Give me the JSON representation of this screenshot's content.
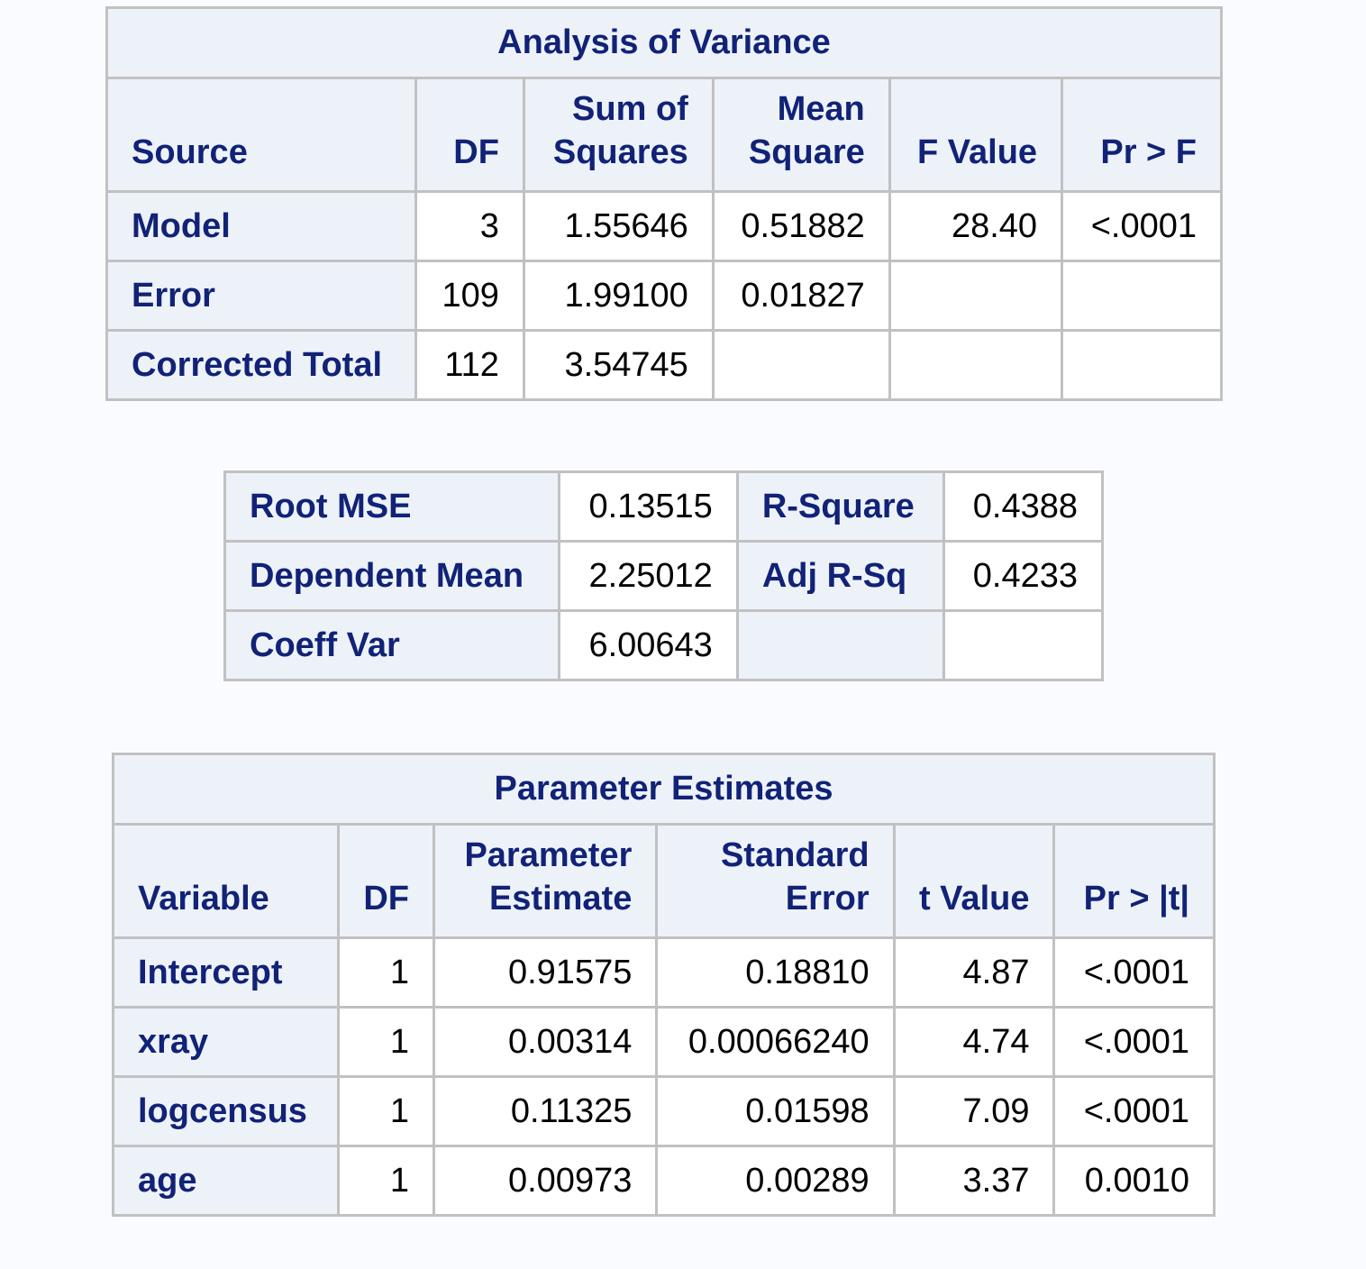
{
  "anova": {
    "title": "Analysis of Variance",
    "headers": {
      "source": "Source",
      "df": "DF",
      "ss_line1": "Sum of",
      "ss_line2": "Squares",
      "ms_line1": "Mean",
      "ms_line2": "Square",
      "f": "F Value",
      "p": "Pr > F"
    },
    "rows": [
      {
        "source": "Model",
        "df": "3",
        "ss": "1.55646",
        "ms": "0.51882",
        "f": "28.40",
        "p": "<.0001"
      },
      {
        "source": "Error",
        "df": "109",
        "ss": "1.99100",
        "ms": "0.01827",
        "f": "",
        "p": ""
      },
      {
        "source": "Corrected Total",
        "df": "112",
        "ss": "3.54745",
        "ms": "",
        "f": "",
        "p": ""
      }
    ]
  },
  "fit": {
    "rows": [
      {
        "label1": "Root MSE",
        "value1": "0.13515",
        "label2": "R-Square",
        "value2": "0.4388"
      },
      {
        "label1": "Dependent Mean",
        "value1": "2.25012",
        "label2": "Adj R-Sq",
        "value2": "0.4233"
      },
      {
        "label1": "Coeff Var",
        "value1": "6.00643",
        "label2": "",
        "value2": ""
      }
    ]
  },
  "params": {
    "title": "Parameter Estimates",
    "headers": {
      "variable": "Variable",
      "df": "DF",
      "est_line1": "Parameter",
      "est_line2": "Estimate",
      "se_line1": "Standard",
      "se_line2": "Error",
      "t": "t Value",
      "p": "Pr > |t|"
    },
    "rows": [
      {
        "variable": "Intercept",
        "df": "1",
        "est": "0.91575",
        "se": "0.18810",
        "t": "4.87",
        "p": "<.0001"
      },
      {
        "variable": "xray",
        "df": "1",
        "est": "0.00314",
        "se": "0.00066240",
        "t": "4.74",
        "p": "<.0001"
      },
      {
        "variable": "logcensus",
        "df": "1",
        "est": "0.11325",
        "se": "0.01598",
        "t": "7.09",
        "p": "<.0001"
      },
      {
        "variable": "age",
        "df": "1",
        "est": "0.00973",
        "se": "0.00289",
        "t": "3.37",
        "p": "0.0010"
      }
    ]
  }
}
